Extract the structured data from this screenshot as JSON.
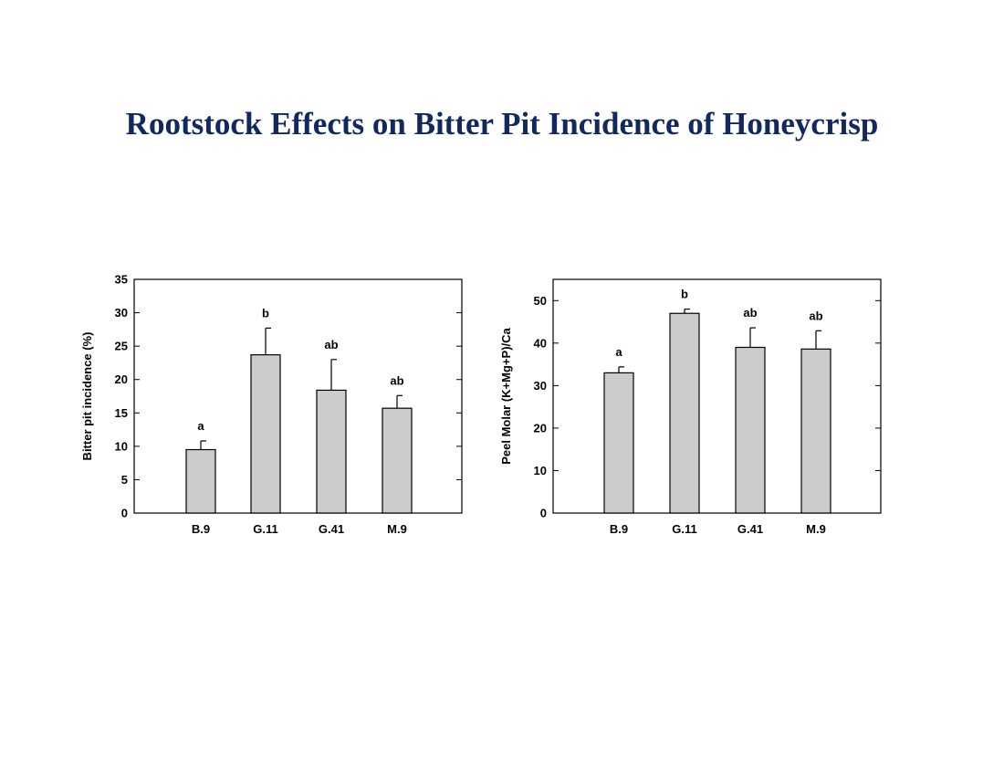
{
  "slide": {
    "title": "Rootstock Effects on Bitter Pit Incidence of Honeycrisp"
  },
  "colors": {
    "title": "#13285e",
    "bar_fill": "#cccccc",
    "axis": "#000000"
  },
  "chart_data": [
    {
      "type": "bar",
      "title": "",
      "xlabel": "",
      "ylabel": "Bitter pit incidence (%)",
      "categories": [
        "B.9",
        "G.11",
        "G.41",
        "M.9"
      ],
      "values": [
        9.5,
        23.7,
        18.4,
        15.7
      ],
      "errors": [
        1.3,
        4.0,
        4.6,
        1.9
      ],
      "significance": [
        "a",
        "b",
        "ab",
        "ab"
      ],
      "ylim": [
        0,
        35
      ],
      "yticks": [
        0,
        5,
        10,
        15,
        20,
        25,
        30,
        35
      ],
      "grid": false,
      "legend": "none"
    },
    {
      "type": "bar",
      "title": "",
      "xlabel": "",
      "ylabel": "Peel Molar (K+Mg+P)/Ca",
      "categories": [
        "B.9",
        "G.11",
        "G.41",
        "M.9"
      ],
      "values": [
        33.0,
        47.0,
        39.0,
        38.6
      ],
      "errors": [
        1.4,
        1.0,
        4.6,
        4.3
      ],
      "significance": [
        "a",
        "b",
        "ab",
        "ab"
      ],
      "ylim": [
        0,
        55
      ],
      "yticks": [
        0,
        10,
        20,
        30,
        40,
        50
      ],
      "grid": false,
      "legend": "none"
    }
  ]
}
